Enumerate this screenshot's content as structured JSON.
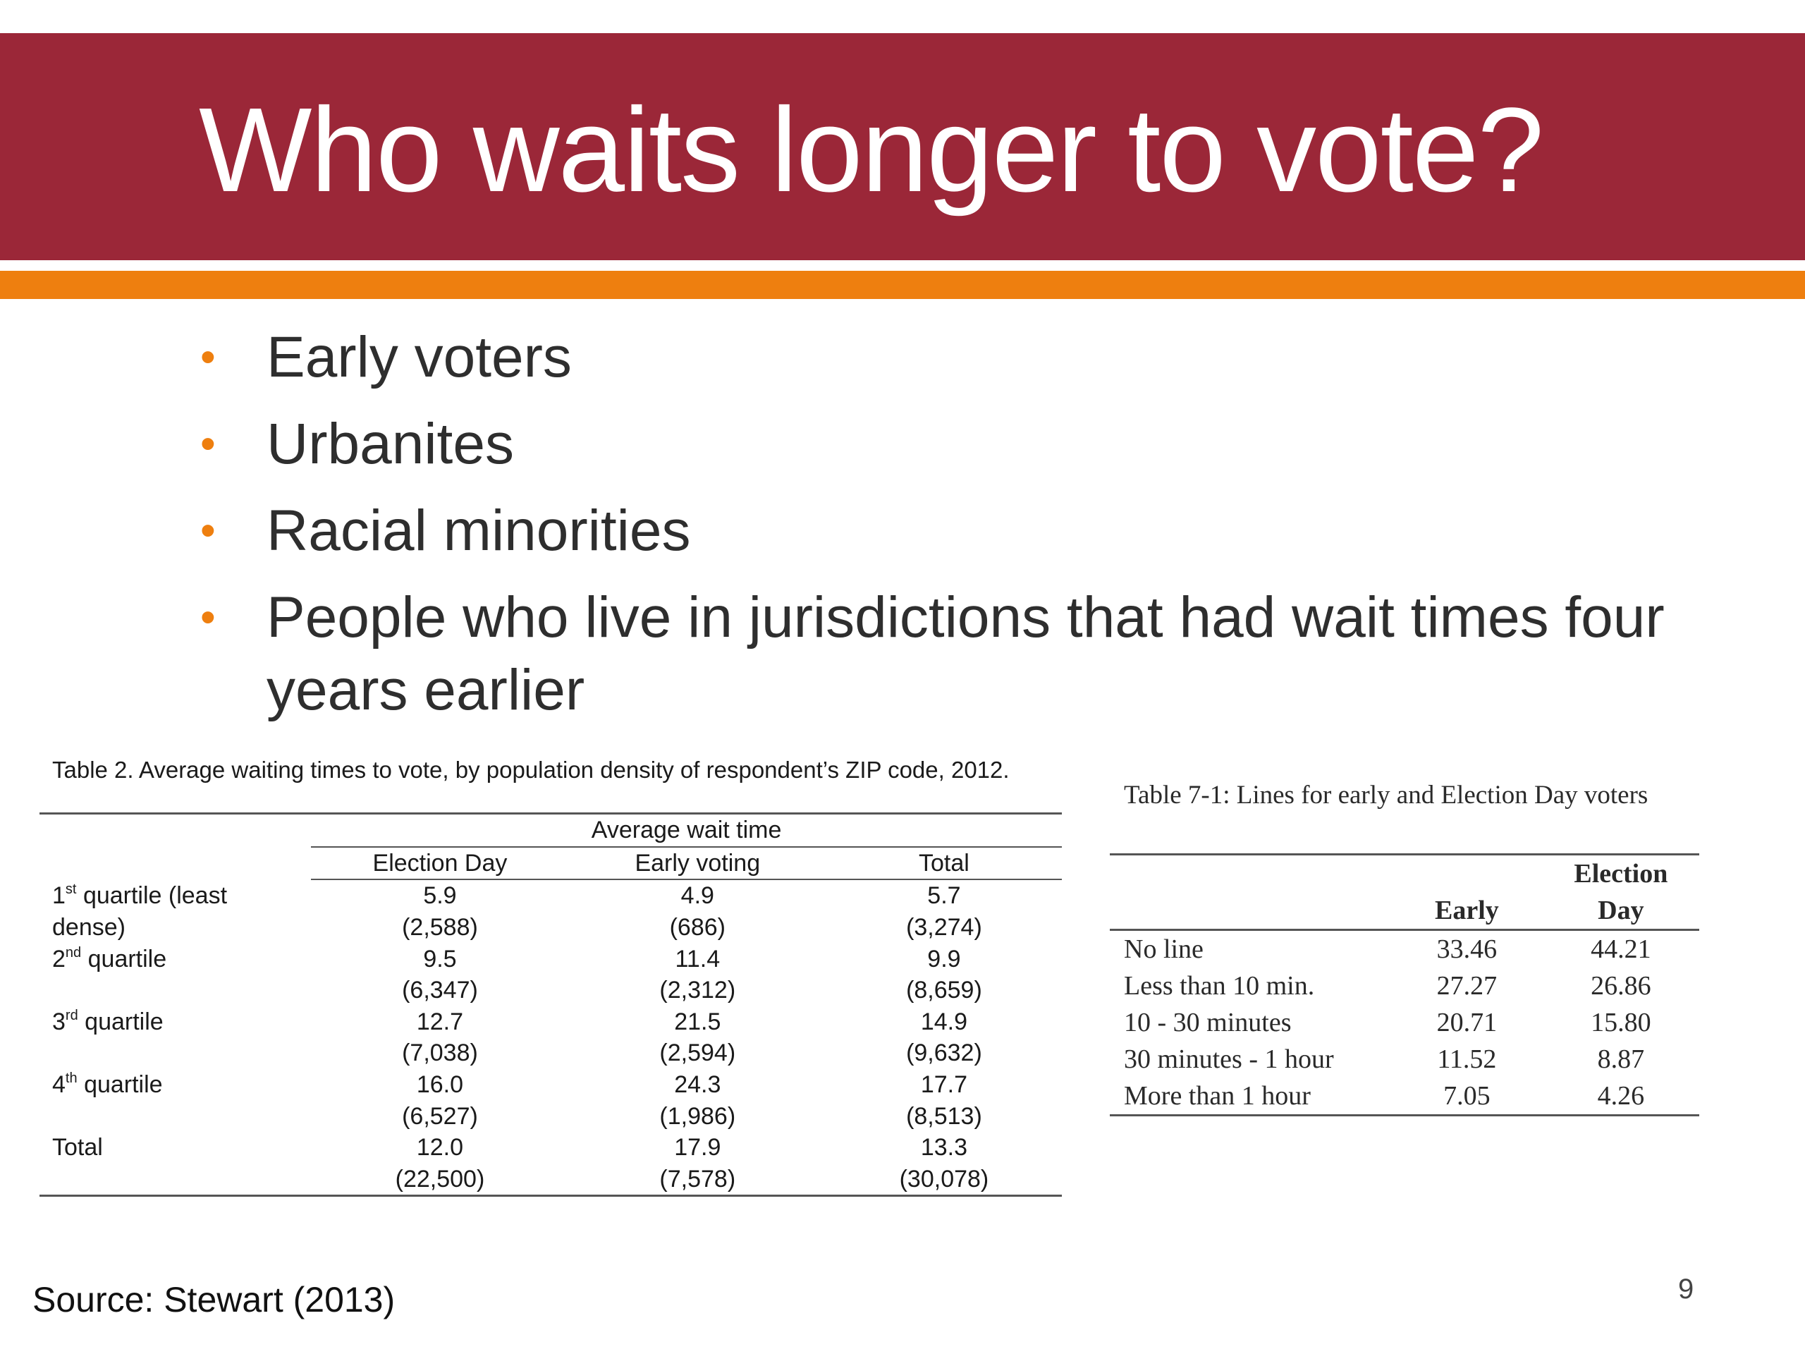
{
  "slide": {
    "title": "Who waits longer to vote?",
    "bullets": [
      "Early voters",
      "Urbanites",
      "Racial minorities",
      "People who live in jurisdictions that had wait times four years earlier"
    ],
    "bullet_glyph": "•",
    "source": "Source: Stewart (2013)",
    "page_number": "9",
    "colors": {
      "banner": "#9b2738",
      "stripe": "#ee7f0f",
      "bullet": "#ee7f0f",
      "title_text": "#ffffff"
    }
  },
  "table2": {
    "caption": "Table 2.  Average waiting times to vote, by population density of respondent’s ZIP code, 2012.",
    "group_header": "Average wait time",
    "columns": [
      "Election Day",
      "Early voting",
      "Total"
    ],
    "rows": [
      {
        "ord": "1",
        "sup": "st",
        "label": "quartile (least",
        "label2": "dense)",
        "values": [
          "5.9",
          "4.9",
          "5.7"
        ],
        "counts": [
          "(2,588)",
          "(686)",
          "(3,274)"
        ]
      },
      {
        "ord": "2",
        "sup": "nd",
        "label": "quartile",
        "label2": "",
        "values": [
          "9.5",
          "11.4",
          "9.9"
        ],
        "counts": [
          "(6,347)",
          "(2,312)",
          "(8,659)"
        ]
      },
      {
        "ord": "3",
        "sup": "rd",
        "label": "quartile",
        "label2": "",
        "values": [
          "12.7",
          "21.5",
          "14.9"
        ],
        "counts": [
          "(7,038)",
          "(2,594)",
          "(9,632)"
        ]
      },
      {
        "ord": "4",
        "sup": "th",
        "label": "quartile",
        "label2": "",
        "values": [
          "16.0",
          "24.3",
          "17.7"
        ],
        "counts": [
          "(6,527)",
          "(1,986)",
          "(8,513)"
        ]
      },
      {
        "ord": "",
        "sup": "",
        "label": "Total",
        "label2": "",
        "values": [
          "12.0",
          "17.9",
          "13.3"
        ],
        "counts": [
          "(22,500)",
          "(7,578)",
          "(30,078)"
        ]
      }
    ]
  },
  "table7": {
    "caption": "Table 7-1: Lines for early and Election Day voters",
    "head_top": [
      "",
      "",
      "Election"
    ],
    "head_bottom": [
      "",
      "Early",
      "Day"
    ],
    "rows": [
      {
        "label": "No line",
        "early": "33.46",
        "eday": "44.21"
      },
      {
        "label": "Less than 10 min.",
        "early": "27.27",
        "eday": "26.86"
      },
      {
        "label": "10 - 30 minutes",
        "early": "20.71",
        "eday": "15.80"
      },
      {
        "label": "30 minutes - 1 hour",
        "early": "11.52",
        "eday": "8.87"
      },
      {
        "label": "More than 1 hour",
        "early": "7.05",
        "eday": "4.26"
      }
    ]
  }
}
